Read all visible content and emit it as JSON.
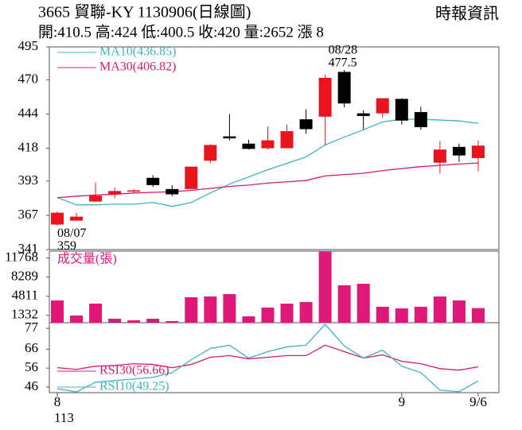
{
  "chart_data": [
    {
      "type": "candlestick",
      "title": "3665  貿聯-KY 1130906(日線圖)",
      "subtitle": "開:410.5 高:424 低:400.5 收:420 量:2652 漲 8",
      "source": "時報資訊",
      "categories": [
        "8",
        null,
        null,
        null,
        null,
        null,
        null,
        null,
        null,
        null,
        null,
        null,
        null,
        null,
        null,
        null,
        null,
        null,
        "9",
        null,
        null,
        null,
        "9/6"
      ],
      "year_label": "113",
      "open": [
        360,
        363,
        377.5,
        383,
        385,
        395.5,
        387,
        387,
        408.5,
        427,
        421.5,
        418,
        418,
        440,
        442,
        476,
        444.5,
        444.5,
        455.5,
        445.5,
        407,
        419,
        410.5
      ],
      "high": [
        370,
        369,
        392,
        388,
        387,
        397.5,
        390,
        404,
        421,
        444,
        424.5,
        434.5,
        436,
        447.5,
        474,
        477.5,
        447,
        456,
        456,
        449.5,
        423.5,
        421.5,
        424
      ],
      "low": [
        359,
        363,
        377,
        380,
        384,
        388.5,
        381.5,
        387,
        407,
        424,
        417,
        417,
        418,
        429,
        420.5,
        449,
        432.5,
        441,
        436,
        432,
        398.7,
        407.7,
        400.5
      ],
      "close": [
        369,
        366,
        382,
        385.5,
        386,
        390,
        383,
        404,
        420.5,
        425.5,
        417.5,
        424,
        431,
        432.5,
        471.5,
        452,
        442.5,
        456,
        439,
        434,
        417,
        412.5,
        420
      ],
      "up_color": "#e8141e",
      "down_color": "#000000",
      "series": [
        {
          "name": "MA10(436.85)",
          "color": "#3cb4c4",
          "values": [
            380.5,
            375,
            375,
            375.5,
            375.5,
            376.8,
            373.8,
            376.8,
            384,
            390.8,
            396.2,
            401.7,
            406.5,
            411.4,
            420.5,
            426.5,
            432,
            438,
            440,
            440,
            439.4,
            438.8,
            436.85
          ]
        },
        {
          "name": "MA30(406.82)",
          "color": "#d81b72",
          "values": [
            380.5,
            381.5,
            382.5,
            383,
            384,
            384.5,
            385,
            386,
            387.5,
            389,
            390,
            391.5,
            392.5,
            393.5,
            397,
            398,
            399,
            401,
            402.5,
            404,
            405,
            406,
            406.82
          ]
        }
      ],
      "annotations": [
        {
          "label": "08/07",
          "value": 359,
          "at": "low"
        },
        {
          "label": "08/28",
          "value": 477.5,
          "at": "high"
        }
      ],
      "ylim": [
        341,
        495
      ],
      "yticks": [
        341,
        367,
        393,
        418,
        444,
        470,
        495
      ]
    },
    {
      "type": "bar",
      "title": "成交量(張)",
      "color": "#e0187a",
      "values": [
        4044,
        1300,
        3466,
        722,
        433,
        722,
        289,
        4622,
        4766,
        5200,
        1155,
        2744,
        3466,
        3755,
        12900,
        6788,
        7078,
        2888,
        2600,
        2888,
        4766,
        4044,
        2652
      ],
      "ylim": [
        0,
        13000
      ],
      "yticks": [
        1332,
        4811,
        8289,
        11768
      ]
    },
    {
      "type": "line",
      "series": [
        {
          "name": "RSI30(56.66)",
          "color": "#d81b72",
          "values": [
            56.2,
            55.3,
            57,
            57.4,
            58.3,
            57.9,
            56.2,
            57.9,
            61.7,
            62.6,
            60.9,
            61.7,
            62.6,
            62.6,
            68.1,
            64.7,
            61.3,
            63,
            59.6,
            58.3,
            55.7,
            54.9,
            56.66
          ]
        },
        {
          "name": "RSI10(49.25)",
          "color": "#3cb4c4",
          "values": [
            45.1,
            43.4,
            48.5,
            49.4,
            50.2,
            51.1,
            53.6,
            60.4,
            66.4,
            68.1,
            61.3,
            64.7,
            67.2,
            68.1,
            79.1,
            67.7,
            61.3,
            65.5,
            57,
            53.6,
            44.3,
            43.5,
            49.25
          ]
        }
      ],
      "ylim": [
        43,
        80
      ],
      "yticks": [
        46,
        56,
        66,
        77
      ]
    }
  ]
}
